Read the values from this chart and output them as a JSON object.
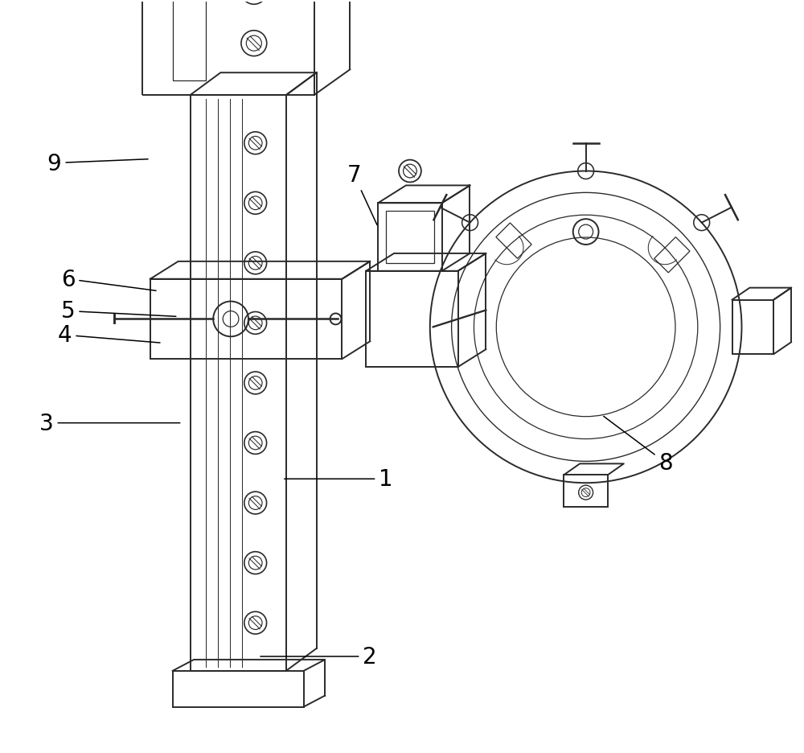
{
  "background_color": "#ffffff",
  "line_color": "#2a2a2a",
  "label_color": "#000000",
  "figure_width": 10.0,
  "figure_height": 9.37,
  "label_fontsize": 20,
  "lw_main": 1.4,
  "lw_thin": 0.9
}
